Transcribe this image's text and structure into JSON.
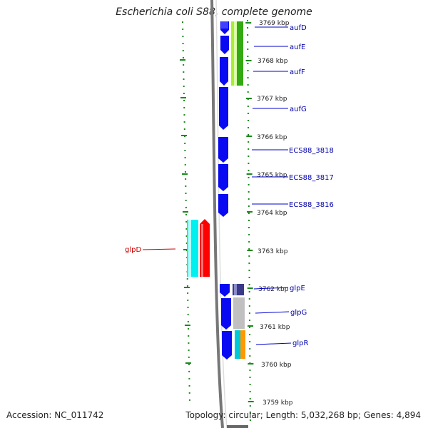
{
  "title": "Escherichia coli S88, complete genome",
  "accession": "Accession: NC_011742",
  "summary": "Topology: circular; Length: 5,032,268 bp; Genes: 4,894",
  "ticks": [
    "3769 kbp",
    "3768 kbp",
    "3767 kbp",
    "3766 kbp",
    "3765 kbp",
    "3764 kbp",
    "3763 kbp",
    "3762 kbp",
    "3761 kbp",
    "3760 kbp",
    "3759 kbp"
  ],
  "genes": [
    {
      "name": "aufD",
      "color": "#0000aa"
    },
    {
      "name": "aufE",
      "color": "#0000aa"
    },
    {
      "name": "aufF",
      "color": "#0000aa"
    },
    {
      "name": "aufG",
      "color": "#0000aa"
    },
    {
      "name": "ECS88_3818",
      "color": "#0000aa"
    },
    {
      "name": "ECS88_3817",
      "color": "#0000aa"
    },
    {
      "name": "ECS88_3816",
      "color": "#0000aa"
    },
    {
      "name": "glpD",
      "color": "#cc0000"
    },
    {
      "name": "glpE",
      "color": "#0000aa"
    },
    {
      "name": "glpG",
      "color": "#0000aa"
    },
    {
      "name": "glpR",
      "color": "#0000aa"
    }
  ],
  "colors": {
    "cds": "#0a0af2",
    "rna_red": "#ff0000",
    "cyan": "#00f0f0",
    "green": "#33aa11",
    "lime": "#aaee33",
    "ruler": "#1a8a1a",
    "backbone": "#777777"
  }
}
